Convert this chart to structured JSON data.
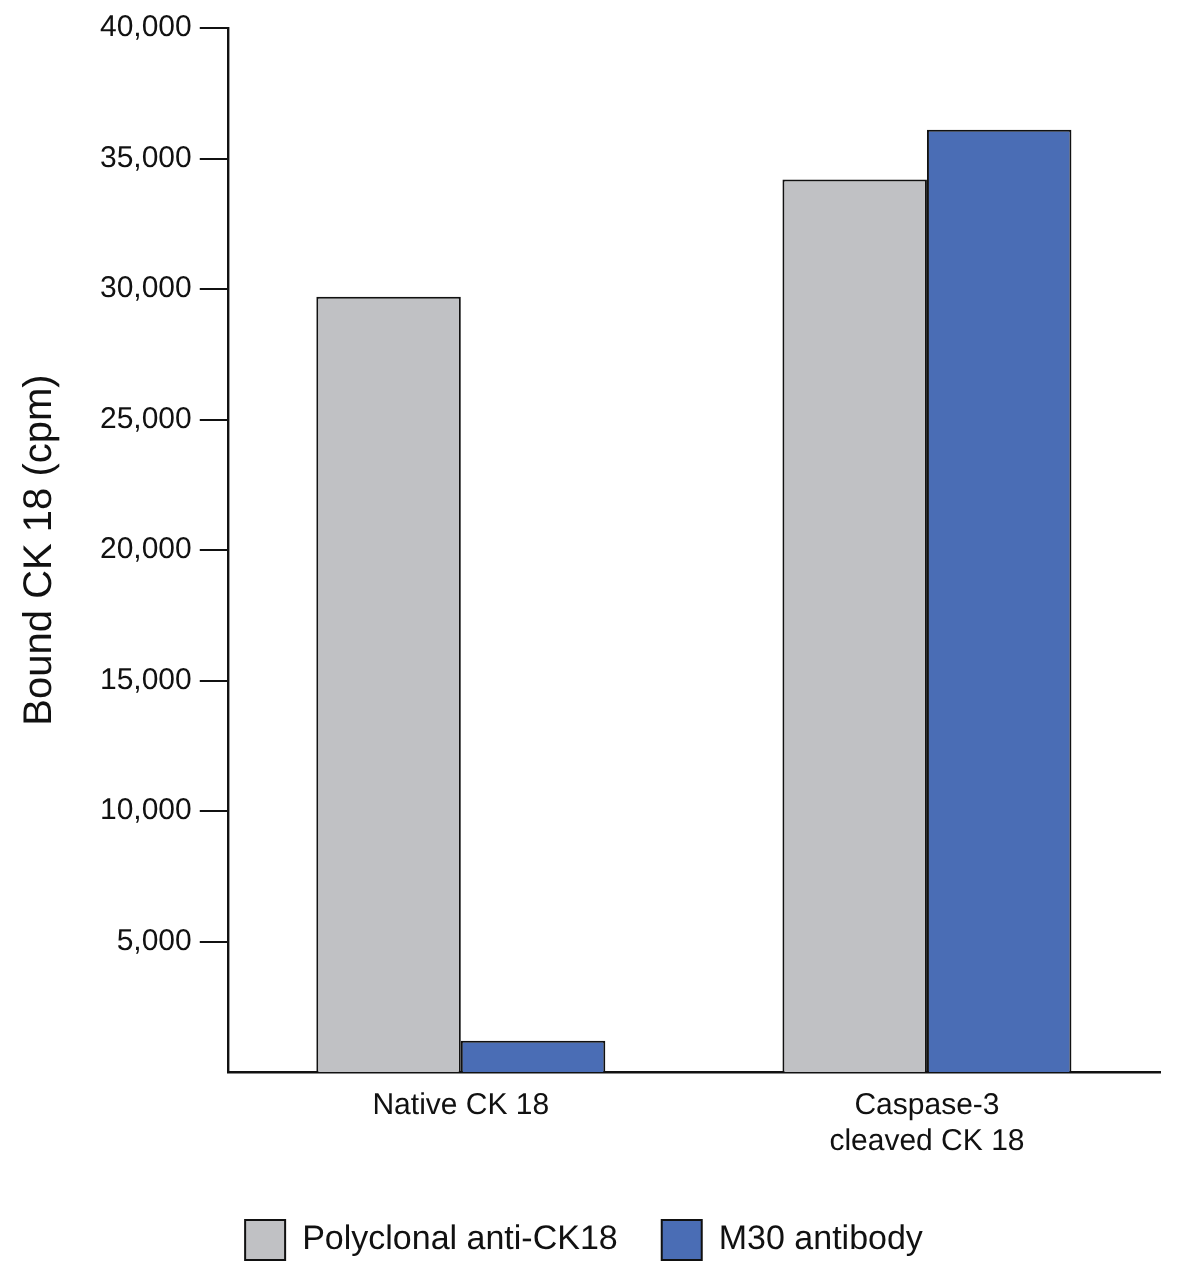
{
  "chart_data": {
    "type": "bar",
    "ylabel": "Bound CK 18 (cpm)",
    "categories": [
      "Native CK 18",
      "Caspase-3\ncleaved CK 18"
    ],
    "series": [
      {
        "name": "Polyclonal anti-CK18",
        "color": "#c0c1c4",
        "values": [
          29700,
          34200
        ]
      },
      {
        "name": "M30 antibody",
        "color": "#4a6db5",
        "values": [
          1200,
          36100
        ]
      }
    ],
    "ylim": [
      0,
      40000
    ],
    "yticks": [
      {
        "value": 5000,
        "label": "5,000"
      },
      {
        "value": 10000,
        "label": "10,000"
      },
      {
        "value": 15000,
        "label": "15,000"
      },
      {
        "value": 20000,
        "label": "20,000"
      },
      {
        "value": 25000,
        "label": "25,000"
      },
      {
        "value": 30000,
        "label": "30,000"
      },
      {
        "value": 35000,
        "label": "35,000"
      },
      {
        "value": 40000,
        "label": "40,000"
      }
    ],
    "grid": false,
    "legend": "bottom"
  }
}
